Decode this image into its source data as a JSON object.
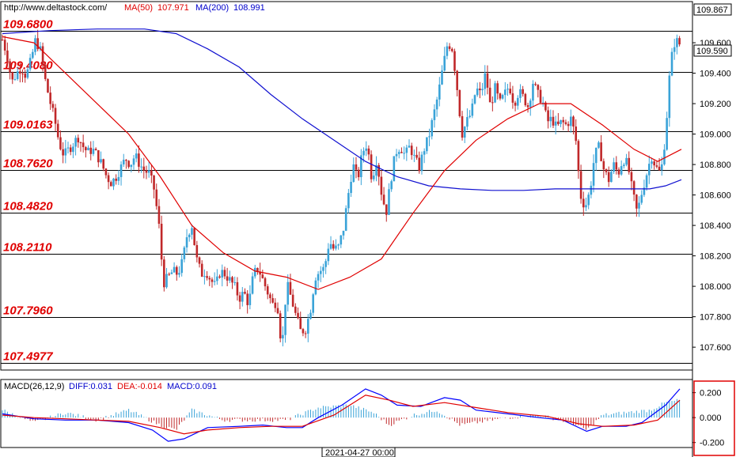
{
  "header": {
    "url": "http://www.deltastock.com/",
    "ma50_label": "MA(50)",
    "ma50_value": "107.971",
    "ma200_label": "MA(200)",
    "ma200_value": "108.991"
  },
  "colors": {
    "bull": "#3aa3d8",
    "bear": "#c0282a",
    "ma50": "#e00000",
    "ma200": "#1010d0",
    "level_text": "#e00000",
    "macd_diff": "#0000ff",
    "macd_dea": "#e00000",
    "hist_pos": "#3aa3d8",
    "hist_neg": "#c0282a",
    "frame_highlight": "#e00000"
  },
  "macd_header": {
    "title": "MACD(26,12,9)",
    "diff": "DIFF:0.031",
    "dea": "DEA:-0.014",
    "macd": "MACD:0.091"
  },
  "time_label": "2021-04-27 00:00",
  "chart_data": {
    "type": "candlestick",
    "y_range": [
      107.45,
      109.86
    ],
    "price_ticks": [
      "109.600",
      "109.400",
      "109.200",
      "109.000",
      "108.800",
      "108.600",
      "108.400",
      "108.200",
      "108.000",
      "107.800",
      "107.600"
    ],
    "price_tick_values": [
      109.6,
      109.4,
      109.2,
      109.0,
      108.8,
      108.6,
      108.4,
      108.2,
      108.0,
      107.8,
      107.6
    ],
    "current_high": "109.867",
    "current_price": "109.590",
    "levels": [
      {
        "label": "109.6800",
        "value": 109.68
      },
      {
        "label": "109.4080",
        "value": 109.408
      },
      {
        "label": "109.0163",
        "value": 109.0163
      },
      {
        "label": "108.7620",
        "value": 108.762
      },
      {
        "label": "108.4820",
        "value": 108.482
      },
      {
        "label": "108.2110",
        "value": 108.211
      },
      {
        "label": "107.7960",
        "value": 107.796
      },
      {
        "label": "107.4977",
        "value": 107.4977
      }
    ],
    "close_path": [
      [
        0,
        109.62
      ],
      [
        6,
        109.52
      ],
      [
        12,
        109.34
      ],
      [
        18,
        109.4
      ],
      [
        24,
        109.44
      ],
      [
        30,
        109.38
      ],
      [
        36,
        109.48
      ],
      [
        42,
        109.62
      ],
      [
        48,
        109.55
      ],
      [
        54,
        109.36
      ],
      [
        60,
        109.22
      ],
      [
        66,
        109.1
      ],
      [
        72,
        108.94
      ],
      [
        78,
        108.86
      ],
      [
        84,
        108.9
      ],
      [
        90,
        108.94
      ],
      [
        96,
        108.98
      ],
      [
        102,
        108.92
      ],
      [
        108,
        108.88
      ],
      [
        114,
        108.9
      ],
      [
        120,
        108.86
      ],
      [
        126,
        108.8
      ],
      [
        132,
        108.72
      ],
      [
        138,
        108.68
      ],
      [
        144,
        108.72
      ],
      [
        150,
        108.78
      ],
      [
        156,
        108.84
      ],
      [
        162,
        108.8
      ],
      [
        168,
        108.86
      ],
      [
        174,
        108.8
      ],
      [
        180,
        108.76
      ],
      [
        186,
        108.74
      ],
      [
        192,
        108.64
      ],
      [
        198,
        108.42
      ],
      [
        204,
        108.02
      ],
      [
        210,
        108.06
      ],
      [
        216,
        108.1
      ],
      [
        222,
        108.08
      ],
      [
        228,
        108.16
      ],
      [
        234,
        108.34
      ],
      [
        240,
        108.4
      ],
      [
        246,
        108.18
      ],
      [
        252,
        108.08
      ],
      [
        258,
        108.1
      ],
      [
        264,
        108.04
      ],
      [
        270,
        108.0
      ],
      [
        276,
        108.1
      ],
      [
        282,
        108.08
      ],
      [
        288,
        108.04
      ],
      [
        294,
        108.0
      ],
      [
        300,
        107.92
      ],
      [
        306,
        107.96
      ],
      [
        312,
        107.88
      ],
      [
        318,
        108.08
      ],
      [
        324,
        108.12
      ],
      [
        330,
        108.04
      ],
      [
        336,
        107.96
      ],
      [
        342,
        107.88
      ],
      [
        348,
        107.9
      ],
      [
        354,
        107.58
      ],
      [
        360,
        108.02
      ],
      [
        366,
        107.92
      ],
      [
        372,
        107.8
      ],
      [
        378,
        107.7
      ],
      [
        384,
        107.72
      ],
      [
        390,
        107.84
      ],
      [
        396,
        108.06
      ],
      [
        402,
        108.1
      ],
      [
        408,
        108.12
      ],
      [
        414,
        108.3
      ],
      [
        420,
        108.24
      ],
      [
        426,
        108.26
      ],
      [
        432,
        108.38
      ],
      [
        438,
        108.6
      ],
      [
        444,
        108.8
      ],
      [
        450,
        108.7
      ],
      [
        456,
        108.88
      ],
      [
        462,
        108.94
      ],
      [
        468,
        108.7
      ],
      [
        474,
        108.84
      ],
      [
        480,
        108.62
      ],
      [
        486,
        108.48
      ],
      [
        492,
        108.7
      ],
      [
        498,
        108.88
      ],
      [
        504,
        108.92
      ],
      [
        510,
        108.86
      ],
      [
        516,
        108.92
      ],
      [
        522,
        108.84
      ],
      [
        528,
        108.78
      ],
      [
        534,
        108.9
      ],
      [
        540,
        108.98
      ],
      [
        546,
        109.12
      ],
      [
        552,
        109.26
      ],
      [
        558,
        109.44
      ],
      [
        564,
        109.6
      ],
      [
        570,
        109.56
      ],
      [
        576,
        109.3
      ],
      [
        582,
        109.0
      ],
      [
        588,
        109.08
      ],
      [
        594,
        109.14
      ],
      [
        600,
        109.3
      ],
      [
        606,
        109.26
      ],
      [
        612,
        109.4
      ],
      [
        618,
        109.18
      ],
      [
        624,
        109.3
      ],
      [
        630,
        109.2
      ],
      [
        636,
        109.26
      ],
      [
        642,
        109.32
      ],
      [
        648,
        109.2
      ],
      [
        654,
        109.28
      ],
      [
        660,
        109.24
      ],
      [
        666,
        109.18
      ],
      [
        672,
        109.34
      ],
      [
        678,
        109.26
      ],
      [
        684,
        109.22
      ],
      [
        690,
        109.08
      ],
      [
        696,
        109.1
      ],
      [
        702,
        109.04
      ],
      [
        708,
        109.08
      ],
      [
        714,
        109.06
      ],
      [
        720,
        109.1
      ],
      [
        726,
        108.98
      ],
      [
        732,
        108.6
      ],
      [
        738,
        108.52
      ],
      [
        744,
        108.62
      ],
      [
        750,
        108.86
      ],
      [
        756,
        108.92
      ],
      [
        762,
        108.76
      ],
      [
        768,
        108.7
      ],
      [
        774,
        108.8
      ],
      [
        780,
        108.74
      ],
      [
        786,
        108.84
      ],
      [
        792,
        108.8
      ],
      [
        798,
        108.62
      ],
      [
        804,
        108.48
      ],
      [
        810,
        108.62
      ],
      [
        816,
        108.74
      ],
      [
        822,
        108.86
      ],
      [
        828,
        108.78
      ],
      [
        834,
        108.74
      ],
      [
        840,
        109.0
      ],
      [
        846,
        109.46
      ],
      [
        852,
        109.62
      ],
      [
        858,
        109.59
      ]
    ],
    "ma50": [
      [
        0,
        109.64
      ],
      [
        40,
        109.6
      ],
      [
        80,
        109.4
      ],
      [
        120,
        109.2
      ],
      [
        160,
        109.0
      ],
      [
        200,
        108.72
      ],
      [
        240,
        108.4
      ],
      [
        280,
        108.22
      ],
      [
        320,
        108.1
      ],
      [
        360,
        108.06
      ],
      [
        400,
        107.98
      ],
      [
        440,
        108.06
      ],
      [
        480,
        108.18
      ],
      [
        520,
        108.48
      ],
      [
        560,
        108.76
      ],
      [
        600,
        108.96
      ],
      [
        640,
        109.1
      ],
      [
        680,
        109.2
      ],
      [
        720,
        109.2
      ],
      [
        760,
        109.06
      ],
      [
        800,
        108.9
      ],
      [
        830,
        108.82
      ],
      [
        860,
        108.9
      ]
    ],
    "ma200": [
      [
        0,
        109.66
      ],
      [
        60,
        109.68
      ],
      [
        120,
        109.69
      ],
      [
        180,
        109.69
      ],
      [
        220,
        109.66
      ],
      [
        260,
        109.56
      ],
      [
        300,
        109.44
      ],
      [
        340,
        109.26
      ],
      [
        380,
        109.1
      ],
      [
        420,
        108.96
      ],
      [
        460,
        108.82
      ],
      [
        500,
        108.72
      ],
      [
        540,
        108.66
      ],
      [
        580,
        108.64
      ],
      [
        620,
        108.63
      ],
      [
        660,
        108.63
      ],
      [
        700,
        108.64
      ],
      [
        740,
        108.64
      ],
      [
        780,
        108.64
      ],
      [
        820,
        108.64
      ],
      [
        840,
        108.66
      ],
      [
        860,
        108.7
      ]
    ],
    "macd_y_range": [
      -0.24,
      0.28
    ],
    "macd_ticks": [
      "0.200",
      "0.000",
      "-0.200"
    ],
    "macd_tick_values": [
      0.2,
      0.0,
      -0.2
    ],
    "diff_path": [
      [
        0,
        0.03
      ],
      [
        40,
        -0.01
      ],
      [
        80,
        -0.02
      ],
      [
        120,
        -0.02
      ],
      [
        160,
        -0.04
      ],
      [
        190,
        -0.1
      ],
      [
        210,
        -0.19
      ],
      [
        230,
        -0.17
      ],
      [
        260,
        -0.08
      ],
      [
        300,
        -0.07
      ],
      [
        330,
        -0.06
      ],
      [
        360,
        -0.08
      ],
      [
        380,
        -0.08
      ],
      [
        400,
        0.0
      ],
      [
        430,
        0.1
      ],
      [
        460,
        0.23
      ],
      [
        480,
        0.18
      ],
      [
        500,
        0.1
      ],
      [
        530,
        0.09
      ],
      [
        560,
        0.16
      ],
      [
        580,
        0.14
      ],
      [
        600,
        0.06
      ],
      [
        640,
        0.03
      ],
      [
        680,
        0.0
      ],
      [
        710,
        -0.02
      ],
      [
        740,
        -0.11
      ],
      [
        760,
        -0.07
      ],
      [
        790,
        -0.07
      ],
      [
        810,
        -0.04
      ],
      [
        840,
        0.1
      ],
      [
        858,
        0.23
      ]
    ],
    "dea_path": [
      [
        0,
        0.02
      ],
      [
        40,
        0.0
      ],
      [
        80,
        -0.01
      ],
      [
        120,
        -0.02
      ],
      [
        160,
        -0.03
      ],
      [
        200,
        -0.08
      ],
      [
        230,
        -0.13
      ],
      [
        260,
        -0.1
      ],
      [
        300,
        -0.08
      ],
      [
        340,
        -0.07
      ],
      [
        380,
        -0.07
      ],
      [
        420,
        0.02
      ],
      [
        460,
        0.18
      ],
      [
        490,
        0.14
      ],
      [
        520,
        0.09
      ],
      [
        560,
        0.12
      ],
      [
        600,
        0.08
      ],
      [
        640,
        0.04
      ],
      [
        690,
        0.01
      ],
      [
        730,
        -0.05
      ],
      [
        760,
        -0.07
      ],
      [
        800,
        -0.06
      ],
      [
        830,
        -0.02
      ],
      [
        858,
        0.14
      ]
    ],
    "hist_path": [
      [
        0,
        0.06
      ],
      [
        40,
        -0.04
      ],
      [
        80,
        0.04
      ],
      [
        120,
        -0.02
      ],
      [
        160,
        0.06
      ],
      [
        200,
        -0.06
      ],
      [
        220,
        -0.1
      ],
      [
        240,
        0.06
      ],
      [
        280,
        -0.02
      ],
      [
        320,
        -0.02
      ],
      [
        360,
        -0.02
      ],
      [
        400,
        0.08
      ],
      [
        440,
        0.1
      ],
      [
        470,
        0.04
      ],
      [
        490,
        -0.06
      ],
      [
        520,
        0.02
      ],
      [
        550,
        0.06
      ],
      [
        580,
        -0.06
      ],
      [
        600,
        -0.04
      ],
      [
        640,
        0.0
      ],
      [
        680,
        0.02
      ],
      [
        720,
        -0.04
      ],
      [
        740,
        -0.1
      ],
      [
        760,
        0.02
      ],
      [
        790,
        0.04
      ],
      [
        820,
        0.06
      ],
      [
        840,
        0.12
      ],
      [
        858,
        0.14
      ]
    ]
  }
}
